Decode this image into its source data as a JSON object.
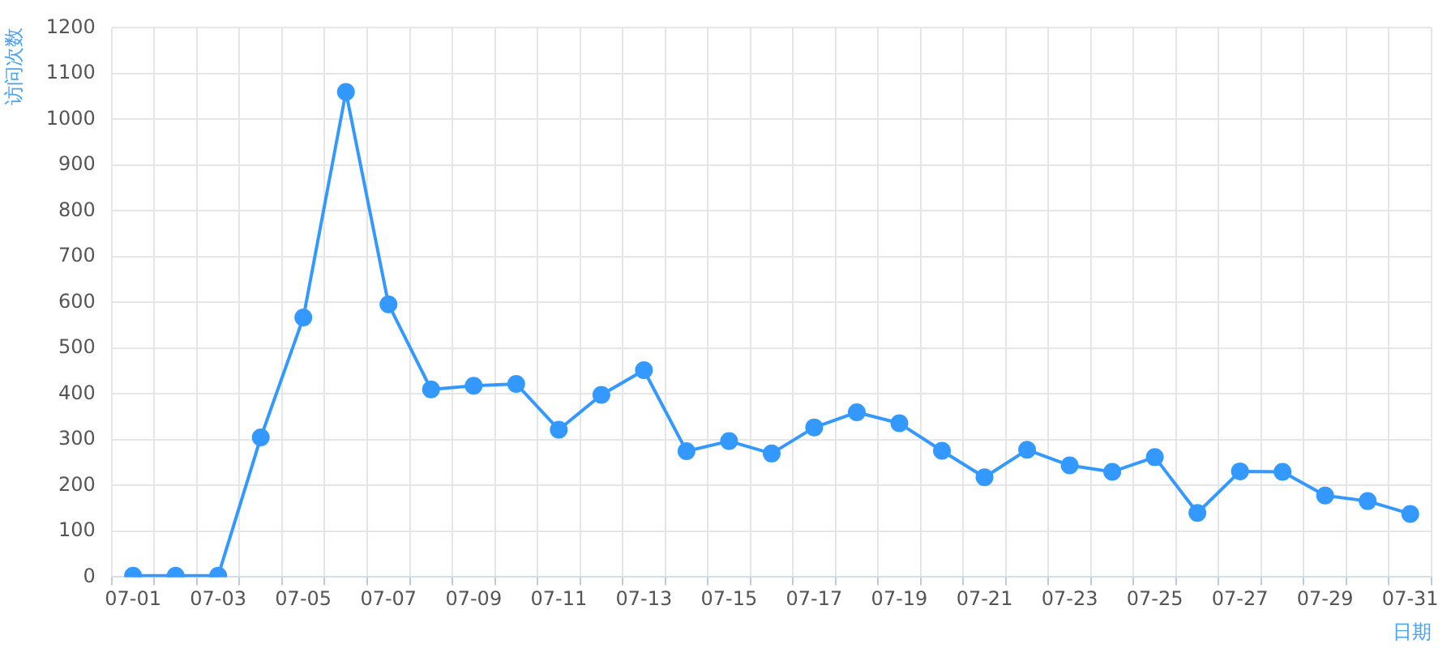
{
  "chart_data": {
    "type": "line",
    "xlabel": "日期",
    "ylabel": "访问次数",
    "categories": [
      "07-01",
      null,
      "07-03",
      null,
      "07-05",
      null,
      "07-07",
      null,
      "07-09",
      null,
      "07-11",
      null,
      "07-13",
      null,
      "07-15",
      null,
      "07-17",
      null,
      "07-19",
      null,
      "07-21",
      null,
      "07-23",
      null,
      "07-25",
      null,
      "07-27",
      null,
      "07-29",
      null,
      "07-31"
    ],
    "series": [
      {
        "color": "#3399ff",
        "values": [
          3,
          3,
          3,
          305,
          567,
          1060,
          596,
          410,
          418,
          422,
          322,
          398,
          452,
          275,
          297,
          270,
          327,
          360,
          336,
          276,
          218,
          278,
          244,
          230,
          262,
          140,
          231,
          230,
          178,
          166,
          138
        ]
      }
    ],
    "ylim": [
      0,
      1200
    ],
    "yticks": [
      0,
      100,
      200,
      300,
      400,
      500,
      600,
      700,
      800,
      900,
      1000,
      1100,
      1200
    ],
    "grid": true,
    "marker": "circle",
    "line_style": "solid"
  }
}
